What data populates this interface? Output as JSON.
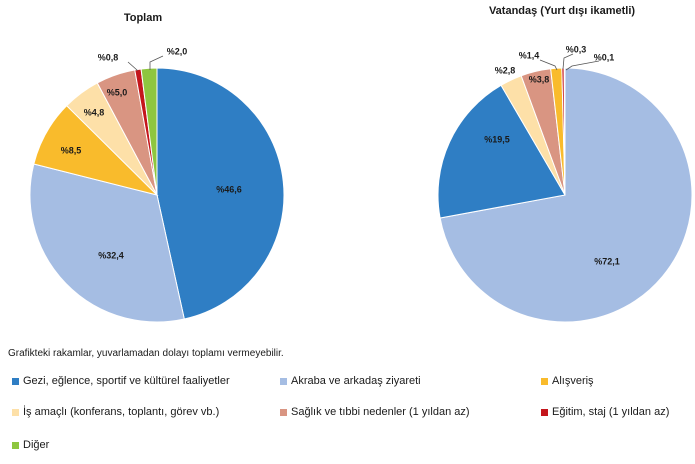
{
  "note": "Grafikteki rakamlar, yuvarlamadan dolayı toplamı vermeyebilir.",
  "legend": [
    {
      "label": "Gezi, eğlence, sportif ve kültürel faaliyetler",
      "color": "#2f7ec4"
    },
    {
      "label": "Akraba ve arkadaş ziyareti",
      "color": "#a5bde3"
    },
    {
      "label": "Alışveriş",
      "color": "#f9bb2c"
    },
    {
      "label": "İş amaçlı (konferans, toplantı, görev vb.)",
      "color": "#fde0a8"
    },
    {
      "label": "Sağlık ve tıbbi nedenler (1 yıldan az)",
      "color": "#d99582"
    },
    {
      "label": "Eğitim, staj (1 yıldan az)",
      "color": "#c4161c"
    },
    {
      "label": "Diğer",
      "color": "#8ec63f"
    }
  ],
  "chart_data": [
    {
      "type": "pie",
      "title": "Toplam",
      "categories": [
        "Gezi, eğlence, sportif ve kültürel faaliyetler",
        "Akraba ve arkadaş ziyareti",
        "Alışveriş",
        "İş amaçlı (konferans, toplantı, görev vb.)",
        "Sağlık ve tıbbi nedenler (1 yıldan az)",
        "Eğitim, staj (1 yıldan az)",
        "Diğer"
      ],
      "values": [
        46.6,
        32.4,
        8.5,
        4.8,
        5.0,
        0.8,
        2.0
      ],
      "labels": [
        "%46,6",
        "%32,4",
        "%8,5",
        "%4,8",
        "%5,0",
        "%0,8",
        "%2,0"
      ],
      "colors": [
        "#2f7ec4",
        "#a5bde3",
        "#f9bb2c",
        "#fde0a8",
        "#d99582",
        "#c4161c",
        "#8ec63f"
      ]
    },
    {
      "type": "pie",
      "title": "Vatandaş (Yurt dışı ikametli)",
      "categories": [
        "Gezi, eğlence, sportif ve kültürel faaliyetler",
        "Akraba ve arkadaş ziyareti",
        "Alışveriş",
        "İş amaçlı (konferans, toplantı, görev vb.)",
        "Sağlık ve tıbbi nedenler (1 yıldan az)",
        "Eğitim, staj (1 yıldan az)",
        "Diğer"
      ],
      "values": [
        19.5,
        72.1,
        1.4,
        2.8,
        3.8,
        0.3,
        0.1
      ],
      "labels": [
        "%19,5",
        "%72,1",
        "%1,4",
        "%2,8",
        "%3,8",
        "%0,3",
        "%0,1"
      ],
      "colors": [
        "#2f7ec4",
        "#a5bde3",
        "#f9bb2c",
        "#fde0a8",
        "#d99582",
        "#c4161c",
        "#8ec63f"
      ]
    }
  ]
}
